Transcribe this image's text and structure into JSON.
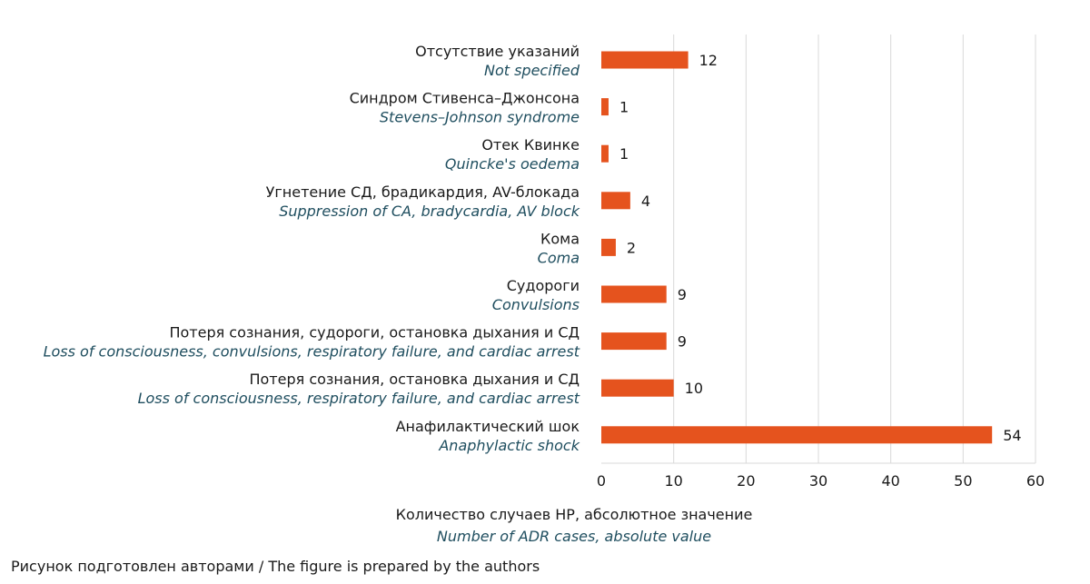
{
  "chart_data": {
    "type": "bar",
    "orientation": "horizontal",
    "categories": [
      {
        "ru": "Отсутствие указаний",
        "en": "Not specified"
      },
      {
        "ru": "Синдром Стивенса–Джонсона",
        "en": "Stevens–Johnson syndrome"
      },
      {
        "ru": "Отек Квинке",
        "en": "Quincke's oedema"
      },
      {
        "ru": "Угнетение СД, брадикардия, AV-блокада",
        "en": "Suppression of CA, bradycardia, AV block"
      },
      {
        "ru": "Кома",
        "en": "Coma"
      },
      {
        "ru": "Судороги",
        "en": "Convulsions"
      },
      {
        "ru": "Потеря сознания, судороги, остановка дыхания и СД",
        "en": "Loss of consciousness, convulsions, respiratory failure, and cardiac arrest"
      },
      {
        "ru": "Потеря сознания, остановка дыхания и СД",
        "en": "Loss of consciousness, respiratory failure, and cardiac arrest"
      },
      {
        "ru": "Анафилактический шок",
        "en": "Anaphylactic shock"
      }
    ],
    "values": [
      12,
      1,
      1,
      4,
      2,
      9,
      9,
      10,
      54
    ],
    "xlabel_ru": "Количество случаев НР, абсолютное значение",
    "xlabel_en": "Number of ADR cases, absolute value",
    "xlim": [
      0,
      60
    ],
    "xticks": [
      0,
      10,
      20,
      30,
      40,
      50,
      60
    ],
    "grid": "vertical",
    "bar_color": "#e5531e",
    "grid_color": "#d9d9d9",
    "english_label_color": "#1f4e5f"
  },
  "caption": "Рисунок подготовлен авторами / The figure is prepared by the authors"
}
